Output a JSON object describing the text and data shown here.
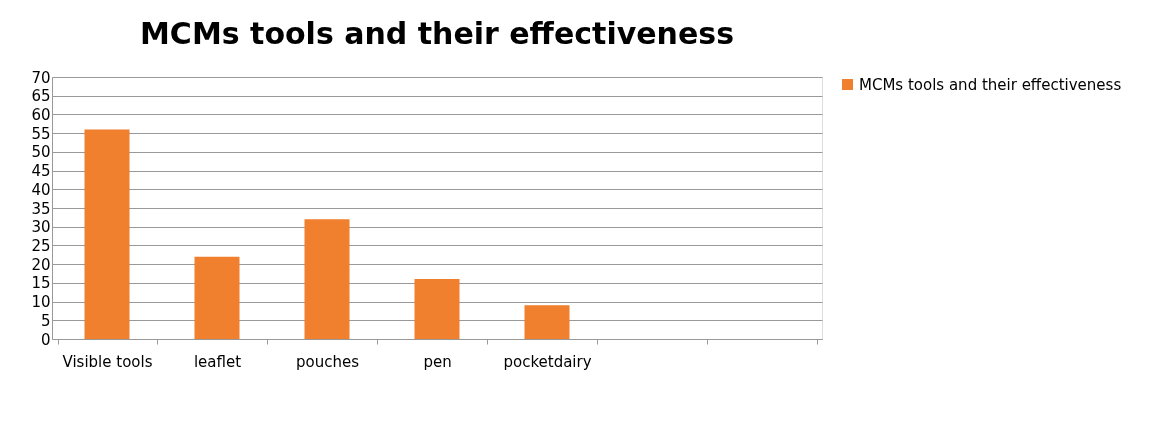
{
  "chart_data": {
    "type": "bar",
    "title": "MCMs tools and their effectiveness",
    "categories": [
      "Visible tools",
      "leaflet",
      "pouches",
      "pen",
      "pocketdairy",
      null,
      null
    ],
    "series": [
      {
        "name": "MCMs tools and their effectiveness",
        "color": "#f07f2e",
        "values": [
          56,
          22,
          32,
          16,
          9,
          null,
          null
        ]
      }
    ],
    "ylim": [
      0,
      70
    ],
    "yticks": [
      0,
      5,
      10,
      15,
      20,
      25,
      30,
      35,
      40,
      45,
      50,
      55,
      60,
      65,
      70
    ],
    "grid": "y",
    "legend": "right"
  }
}
